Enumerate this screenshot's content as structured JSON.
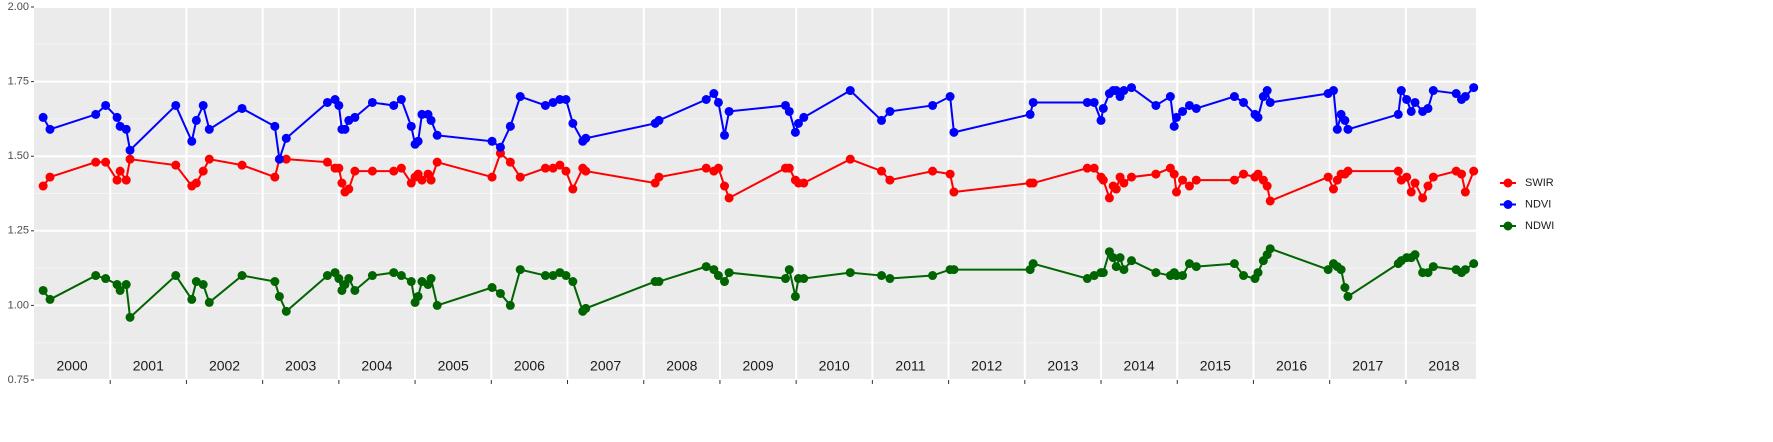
{
  "chart_data": {
    "type": "line",
    "x": [
      2000.12,
      2000.21,
      2000.81,
      2000.94,
      2001.09,
      2001.13,
      2001.21,
      2001.26,
      2001.86,
      2002.07,
      2002.13,
      2002.22,
      2002.3,
      2002.73,
      2003.16,
      2003.22,
      2003.31,
      2003.85,
      2003.95,
      2004.0,
      2004.04,
      2004.08,
      2004.13,
      2004.21,
      2004.44,
      2004.72,
      2004.82,
      2004.95,
      2005.0,
      2005.04,
      2005.09,
      2005.17,
      2005.21,
      2005.29,
      2006.01,
      2006.12,
      2006.25,
      2006.38,
      2006.71,
      2006.81,
      2006.9,
      2006.98,
      2007.07,
      2007.2,
      2007.24,
      2008.15,
      2008.2,
      2008.82,
      2008.92,
      2008.98,
      2009.06,
      2009.12,
      2009.86,
      2009.91,
      2009.99,
      2010.03,
      2010.1,
      2010.71,
      2011.12,
      2011.23,
      2011.79,
      2012.02,
      2012.07,
      2013.07,
      2013.11,
      2013.82,
      2013.91,
      2014.0,
      2014.03,
      2014.11,
      2014.16,
      2014.2,
      2014.25,
      2014.3,
      2014.4,
      2014.72,
      2014.91,
      2014.96,
      2014.99,
      2015.07,
      2015.16,
      2015.25,
      2015.75,
      2015.87,
      2016.02,
      2016.06,
      2016.13,
      2016.18,
      2016.22,
      2016.98,
      2017.05,
      2017.1,
      2017.15,
      2017.2,
      2017.24,
      2017.9,
      2017.94,
      2018.01,
      2018.07,
      2018.12,
      2018.22,
      2018.29,
      2018.36,
      2018.66,
      2018.73,
      2018.78,
      2018.89
    ],
    "series": [
      {
        "name": "SWIR",
        "color": "#ff0000",
        "values": [
          1.4,
          1.43,
          1.48,
          1.48,
          1.42,
          1.45,
          1.42,
          1.49,
          1.47,
          1.4,
          1.41,
          1.45,
          1.49,
          1.47,
          1.43,
          1.49,
          1.49,
          1.48,
          1.46,
          1.46,
          1.41,
          1.38,
          1.39,
          1.45,
          1.45,
          1.45,
          1.46,
          1.41,
          1.43,
          1.44,
          1.42,
          1.44,
          1.42,
          1.48,
          1.43,
          1.51,
          1.48,
          1.43,
          1.46,
          1.46,
          1.47,
          1.45,
          1.39,
          1.46,
          1.45,
          1.41,
          1.43,
          1.46,
          1.45,
          1.46,
          1.4,
          1.36,
          1.46,
          1.46,
          1.42,
          1.41,
          1.41,
          1.49,
          1.45,
          1.42,
          1.45,
          1.44,
          1.38,
          1.41,
          1.41,
          1.46,
          1.46,
          1.43,
          1.42,
          1.36,
          1.4,
          1.39,
          1.43,
          1.41,
          1.43,
          1.44,
          1.46,
          1.44,
          1.38,
          1.42,
          1.4,
          1.42,
          1.42,
          1.44,
          1.43,
          1.44,
          1.42,
          1.4,
          1.35,
          1.43,
          1.39,
          1.42,
          1.44,
          1.44,
          1.45,
          1.45,
          1.42,
          1.43,
          1.38,
          1.41,
          1.36,
          1.4,
          1.43,
          1.45,
          1.44,
          1.38,
          1.45
        ]
      },
      {
        "name": "NDVI",
        "color": "#0000ff",
        "values": [
          1.63,
          1.59,
          1.64,
          1.67,
          1.63,
          1.6,
          1.59,
          1.52,
          1.67,
          1.55,
          1.62,
          1.67,
          1.59,
          1.66,
          1.6,
          1.49,
          1.56,
          1.68,
          1.69,
          1.67,
          1.59,
          1.59,
          1.62,
          1.63,
          1.68,
          1.67,
          1.69,
          1.6,
          1.54,
          1.55,
          1.64,
          1.64,
          1.62,
          1.57,
          1.55,
          1.53,
          1.6,
          1.7,
          1.67,
          1.68,
          1.69,
          1.69,
          1.61,
          1.55,
          1.56,
          1.61,
          1.62,
          1.69,
          1.71,
          1.68,
          1.57,
          1.65,
          1.67,
          1.65,
          1.58,
          1.61,
          1.63,
          1.72,
          1.62,
          1.65,
          1.67,
          1.7,
          1.58,
          1.64,
          1.68,
          1.68,
          1.68,
          1.62,
          1.66,
          1.71,
          1.72,
          1.72,
          1.7,
          1.72,
          1.73,
          1.67,
          1.7,
          1.6,
          1.63,
          1.65,
          1.67,
          1.66,
          1.7,
          1.68,
          1.64,
          1.63,
          1.7,
          1.72,
          1.68,
          1.71,
          1.72,
          1.59,
          1.64,
          1.62,
          1.59,
          1.64,
          1.72,
          1.69,
          1.65,
          1.68,
          1.65,
          1.66,
          1.72,
          1.71,
          1.69,
          1.7,
          1.73
        ]
      },
      {
        "name": "NDWI",
        "color": "#006400",
        "values": [
          1.05,
          1.02,
          1.1,
          1.09,
          1.07,
          1.05,
          1.07,
          0.96,
          1.1,
          1.02,
          1.08,
          1.07,
          1.01,
          1.1,
          1.08,
          1.03,
          0.98,
          1.1,
          1.11,
          1.09,
          1.05,
          1.07,
          1.09,
          1.05,
          1.1,
          1.11,
          1.1,
          1.08,
          1.01,
          1.03,
          1.08,
          1.07,
          1.09,
          1.0,
          1.06,
          1.04,
          1.0,
          1.12,
          1.1,
          1.1,
          1.11,
          1.1,
          1.08,
          0.98,
          0.99,
          1.08,
          1.08,
          1.13,
          1.12,
          1.1,
          1.08,
          1.11,
          1.09,
          1.12,
          1.03,
          1.09,
          1.09,
          1.11,
          1.1,
          1.09,
          1.1,
          1.12,
          1.12,
          1.12,
          1.14,
          1.09,
          1.1,
          1.11,
          1.11,
          1.18,
          1.16,
          1.13,
          1.16,
          1.12,
          1.15,
          1.11,
          1.1,
          1.11,
          1.1,
          1.1,
          1.14,
          1.13,
          1.14,
          1.1,
          1.09,
          1.11,
          1.15,
          1.17,
          1.19,
          1.12,
          1.14,
          1.13,
          1.12,
          1.06,
          1.03,
          1.14,
          1.15,
          1.16,
          1.16,
          1.17,
          1.11,
          1.11,
          1.13,
          1.12,
          1.11,
          1.12,
          1.14
        ]
      }
    ],
    "xlim": [
      2000,
      2018.92
    ],
    "xticks": [
      2001,
      2002,
      2003,
      2004,
      2005,
      2006,
      2007,
      2008,
      2009,
      2010,
      2011,
      2012,
      2013,
      2014,
      2015,
      2016,
      2017,
      2018
    ],
    "year_labels": [
      2000,
      2001,
      2002,
      2003,
      2004,
      2005,
      2006,
      2007,
      2008,
      2009,
      2010,
      2011,
      2012,
      2013,
      2014,
      2015,
      2016,
      2017,
      2018
    ],
    "ylim": [
      0.75,
      2.0
    ],
    "yticks": [
      {
        "value": 0.75,
        "label": "0.75"
      },
      {
        "value": 1.0,
        "label": "1.00"
      },
      {
        "value": 1.25,
        "label": "1.25"
      },
      {
        "value": 1.5,
        "label": "1.50"
      },
      {
        "value": 1.75,
        "label": "1.75"
      },
      {
        "value": 2.0,
        "label": "2.00"
      }
    ],
    "grid": true,
    "legend": "right"
  }
}
